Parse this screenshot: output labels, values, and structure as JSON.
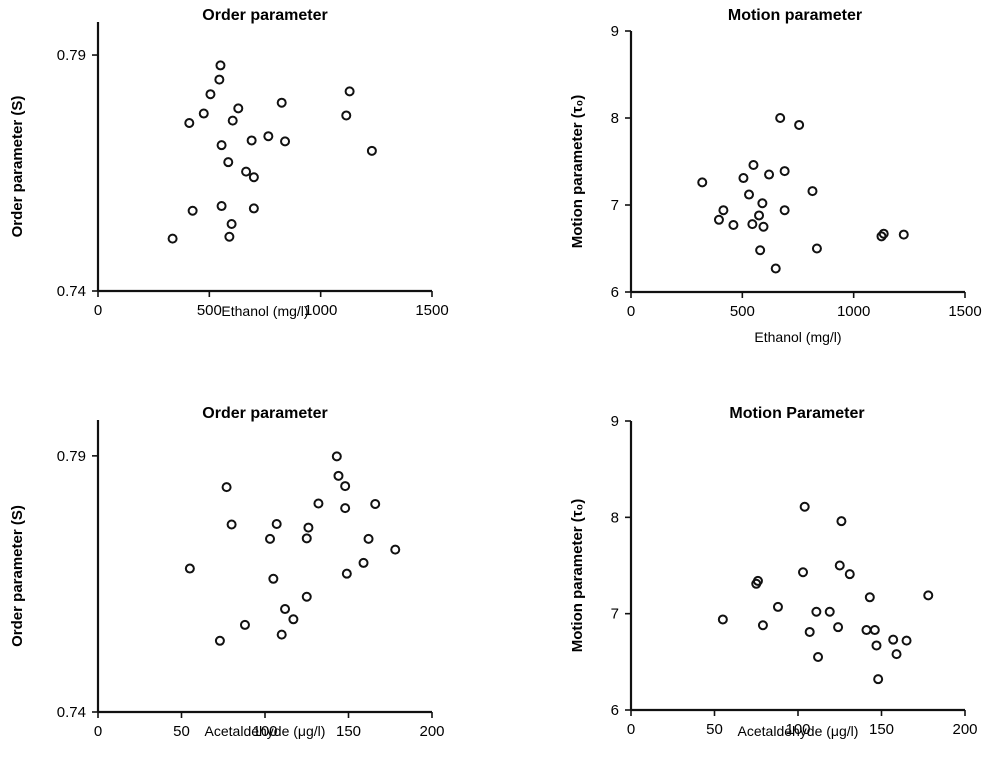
{
  "chart_data": [
    {
      "type": "scatter",
      "title": "Order parameter",
      "xlabel": "Ethanol (mg/l)",
      "ylabel": "Order parameter (S)",
      "xlim": [
        0,
        1500
      ],
      "ylim": [
        0.74,
        0.797
      ],
      "xticks": [
        "0",
        "500",
        "1000",
        "1500"
      ],
      "yticks": [
        "0.74",
        "0.79"
      ],
      "xtick_values": [
        0,
        500,
        1000,
        1500
      ],
      "ytick_values": [
        0.74,
        0.79
      ],
      "grid": false,
      "points": [
        {
          "x": 335,
          "y": 0.7511
        },
        {
          "x": 410,
          "y": 0.7756
        },
        {
          "x": 425,
          "y": 0.757
        },
        {
          "x": 475,
          "y": 0.7776
        },
        {
          "x": 505,
          "y": 0.7817
        },
        {
          "x": 545,
          "y": 0.7848
        },
        {
          "x": 550,
          "y": 0.7878
        },
        {
          "x": 555,
          "y": 0.7709
        },
        {
          "x": 555,
          "y": 0.758
        },
        {
          "x": 585,
          "y": 0.7673
        },
        {
          "x": 590,
          "y": 0.7515
        },
        {
          "x": 600,
          "y": 0.7542
        },
        {
          "x": 605,
          "y": 0.7761
        },
        {
          "x": 630,
          "y": 0.7787
        },
        {
          "x": 665,
          "y": 0.7653
        },
        {
          "x": 690,
          "y": 0.7719
        },
        {
          "x": 700,
          "y": 0.7575
        },
        {
          "x": 700,
          "y": 0.7641
        },
        {
          "x": 765,
          "y": 0.7728
        },
        {
          "x": 825,
          "y": 0.7799
        },
        {
          "x": 840,
          "y": 0.7717
        },
        {
          "x": 1115,
          "y": 0.7772
        },
        {
          "x": 1130,
          "y": 0.7823
        },
        {
          "x": 1230,
          "y": 0.7697
        }
      ]
    },
    {
      "type": "scatter",
      "title": "Motion parameter",
      "xlabel": "Ethanol (mg/l)",
      "ylabel": "Motion parameter (τ₀)",
      "xlim": [
        0,
        1500
      ],
      "ylim": [
        6,
        9
      ],
      "xticks": [
        "0",
        "500",
        "1000",
        "1500"
      ],
      "yticks": [
        "6",
        "7",
        "8",
        "9"
      ],
      "xtick_values": [
        0,
        500,
        1000,
        1500
      ],
      "ytick_values": [
        6,
        7,
        8,
        9
      ],
      "grid": false,
      "points": [
        {
          "x": 320,
          "y": 7.26
        },
        {
          "x": 395,
          "y": 6.83
        },
        {
          "x": 415,
          "y": 6.94
        },
        {
          "x": 460,
          "y": 6.77
        },
        {
          "x": 505,
          "y": 7.31
        },
        {
          "x": 530,
          "y": 7.12
        },
        {
          "x": 545,
          "y": 6.78
        },
        {
          "x": 550,
          "y": 7.46
        },
        {
          "x": 575,
          "y": 6.88
        },
        {
          "x": 580,
          "y": 6.48
        },
        {
          "x": 590,
          "y": 7.02
        },
        {
          "x": 595,
          "y": 6.75
        },
        {
          "x": 620,
          "y": 7.35
        },
        {
          "x": 650,
          "y": 6.27
        },
        {
          "x": 670,
          "y": 8.0
        },
        {
          "x": 690,
          "y": 7.39
        },
        {
          "x": 690,
          "y": 6.94
        },
        {
          "x": 755,
          "y": 7.92
        },
        {
          "x": 815,
          "y": 7.16
        },
        {
          "x": 835,
          "y": 6.5
        },
        {
          "x": 1125,
          "y": 6.64
        },
        {
          "x": 1135,
          "y": 6.67
        },
        {
          "x": 1225,
          "y": 6.66
        }
      ]
    },
    {
      "type": "scatter",
      "title": "Order parameter",
      "xlabel": "Acetaldehyde (μg/l)",
      "ylabel": "Order parameter (S)",
      "xlim": [
        0,
        200
      ],
      "ylim": [
        0.74,
        0.797
      ],
      "xticks": [
        "0",
        "50",
        "100",
        "150",
        "200"
      ],
      "yticks": [
        "0.74",
        "0.79"
      ],
      "xtick_values": [
        0,
        50,
        100,
        150,
        200
      ],
      "ytick_values": [
        0.74,
        0.79
      ],
      "grid": false,
      "points": [
        {
          "x": 55,
          "y": 0.768
        },
        {
          "x": 73,
          "y": 0.7539
        },
        {
          "x": 77,
          "y": 0.7839
        },
        {
          "x": 80,
          "y": 0.7766
        },
        {
          "x": 88,
          "y": 0.757
        },
        {
          "x": 103,
          "y": 0.7738
        },
        {
          "x": 105,
          "y": 0.766
        },
        {
          "x": 107,
          "y": 0.7767
        },
        {
          "x": 110,
          "y": 0.7551
        },
        {
          "x": 112,
          "y": 0.7601
        },
        {
          "x": 117,
          "y": 0.7581
        },
        {
          "x": 125,
          "y": 0.7625
        },
        {
          "x": 125,
          "y": 0.7739
        },
        {
          "x": 126,
          "y": 0.776
        },
        {
          "x": 132,
          "y": 0.7807
        },
        {
          "x": 143,
          "y": 0.7899
        },
        {
          "x": 144,
          "y": 0.7861
        },
        {
          "x": 148,
          "y": 0.7841
        },
        {
          "x": 148,
          "y": 0.7798
        },
        {
          "x": 149,
          "y": 0.767
        },
        {
          "x": 159,
          "y": 0.7691
        },
        {
          "x": 162,
          "y": 0.7738
        },
        {
          "x": 166,
          "y": 0.7806
        },
        {
          "x": 178,
          "y": 0.7717
        }
      ]
    },
    {
      "type": "scatter",
      "title": "Motion Parameter",
      "xlabel": "Acetaldehyde (μg/l)",
      "ylabel": "Motion parameter (τ₀)",
      "xlim": [
        0,
        200
      ],
      "ylim": [
        6,
        9
      ],
      "xticks": [
        "0",
        "50",
        "100",
        "150",
        "200"
      ],
      "yticks": [
        "6",
        "7",
        "8",
        "9"
      ],
      "xtick_values": [
        0,
        50,
        100,
        150,
        200
      ],
      "ytick_values": [
        6,
        7,
        8,
        9
      ],
      "grid": false,
      "points": [
        {
          "x": 55,
          "y": 6.94
        },
        {
          "x": 75,
          "y": 7.31
        },
        {
          "x": 76,
          "y": 7.34
        },
        {
          "x": 79,
          "y": 6.88
        },
        {
          "x": 88,
          "y": 7.07
        },
        {
          "x": 103,
          "y": 7.43
        },
        {
          "x": 104,
          "y": 8.11
        },
        {
          "x": 107,
          "y": 6.81
        },
        {
          "x": 111,
          "y": 7.02
        },
        {
          "x": 112,
          "y": 6.55
        },
        {
          "x": 119,
          "y": 7.02
        },
        {
          "x": 124,
          "y": 6.86
        },
        {
          "x": 125,
          "y": 7.5
        },
        {
          "x": 126,
          "y": 7.96
        },
        {
          "x": 131,
          "y": 7.41
        },
        {
          "x": 141,
          "y": 6.83
        },
        {
          "x": 143,
          "y": 7.17
        },
        {
          "x": 146,
          "y": 6.83
        },
        {
          "x": 147,
          "y": 6.67
        },
        {
          "x": 148,
          "y": 6.32
        },
        {
          "x": 157,
          "y": 6.73
        },
        {
          "x": 159,
          "y": 6.58
        },
        {
          "x": 165,
          "y": 6.72
        },
        {
          "x": 178,
          "y": 7.19
        }
      ]
    }
  ]
}
